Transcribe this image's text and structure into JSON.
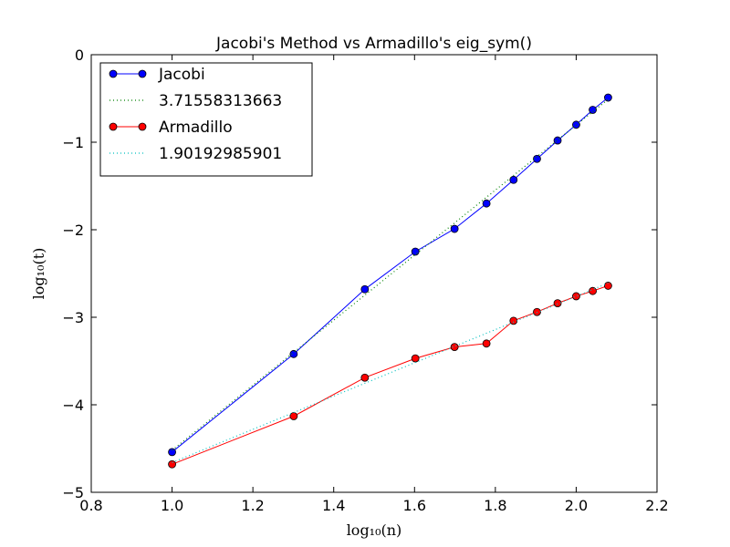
{
  "chart_data": {
    "type": "line",
    "title": "Jacobi's Method vs Armadillo's eig_sym()",
    "xlabel": "log₁₀(n)",
    "ylabel": "log₁₀(t)",
    "xlim": [
      0.8,
      2.2
    ],
    "ylim": [
      -5,
      0
    ],
    "x_ticks": [
      0.8,
      1.0,
      1.2,
      1.4,
      1.6,
      1.8,
      2.0,
      2.2
    ],
    "x_tick_labels": [
      "0.8",
      "1.0",
      "1.2",
      "1.4",
      "1.6",
      "1.8",
      "2.0",
      "2.2"
    ],
    "y_ticks": [
      0,
      -1,
      -2,
      -3,
      -4,
      -5
    ],
    "y_tick_labels": [
      "0",
      "−1",
      "−2",
      "−3",
      "−4",
      "−5"
    ],
    "grid": false,
    "legend_position": "top-left",
    "x": [
      1.0,
      1.301,
      1.477,
      1.602,
      1.699,
      1.778,
      1.845,
      1.903,
      1.954,
      2.0,
      2.041,
      2.079
    ],
    "series": [
      {
        "name": "Jacobi",
        "style": "line-marker",
        "color": "#0000ff",
        "marker_color": "#0000ff",
        "values": [
          -4.54,
          -3.42,
          -2.68,
          -2.25,
          -1.99,
          -1.7,
          -1.43,
          -1.19,
          -0.98,
          -0.8,
          -0.63,
          -0.49
        ]
      },
      {
        "name": "3.71558313663",
        "style": "dotted",
        "color": "#008000",
        "x": [
          1.0,
          2.079
        ],
        "values": [
          -4.52,
          -0.51
        ]
      },
      {
        "name": "Armadillo",
        "style": "line-marker",
        "color": "#ff0000",
        "marker_color": "#ff0000",
        "values": [
          -4.68,
          -4.13,
          -3.69,
          -3.47,
          -3.34,
          -3.3,
          -3.04,
          -2.94,
          -2.84,
          -2.76,
          -2.7,
          -2.64
        ]
      },
      {
        "name": "1.90192985901",
        "style": "dotted",
        "color": "#00bfbf",
        "x": [
          1.0,
          2.079
        ],
        "values": [
          -4.66,
          -2.61
        ]
      }
    ]
  }
}
